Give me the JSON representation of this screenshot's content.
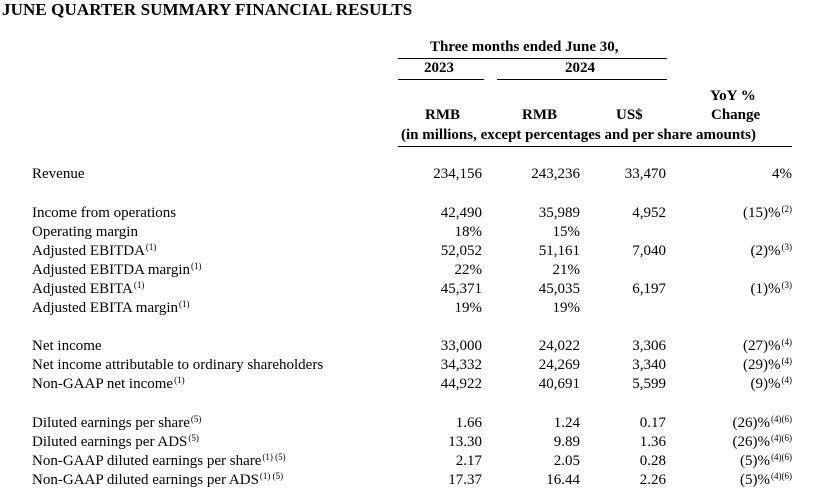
{
  "title": "JUNE QUARTER SUMMARY FINANCIAL RESULTS",
  "header": {
    "period": "Three months ended June 30,",
    "year_2023": "2023",
    "year_2024": "2024",
    "yoy_line1": "YoY %",
    "yoy_line2": "Change",
    "cur_rmb_2023": "RMB",
    "cur_rmb_2024": "RMB",
    "cur_usd": "US$",
    "units_note": "(in millions, except percentages and per share amounts)"
  },
  "rows": [
    {
      "label": "Revenue",
      "label_note": "",
      "rmb_2023": "234,156",
      "rmb_2024": "243,236",
      "usd_2024": "33,470",
      "yoy": "4%",
      "yoy_note": ""
    },
    {
      "label": "Income from operations",
      "label_note": "",
      "rmb_2023": "42,490",
      "rmb_2024": "35,989",
      "usd_2024": "4,952",
      "yoy": "(15)%",
      "yoy_note": "(2)"
    },
    {
      "label": "Operating margin",
      "label_note": "",
      "rmb_2023": "18%",
      "rmb_2024": "15%",
      "usd_2024": "",
      "yoy": "",
      "yoy_note": ""
    },
    {
      "label": "Adjusted EBITDA",
      "label_note": "(1)",
      "rmb_2023": "52,052",
      "rmb_2024": "51,161",
      "usd_2024": "7,040",
      "yoy": "(2)%",
      "yoy_note": "(3)"
    },
    {
      "label": "Adjusted EBITDA margin",
      "label_note": "(1)",
      "rmb_2023": "22%",
      "rmb_2024": "21%",
      "usd_2024": "",
      "yoy": "",
      "yoy_note": ""
    },
    {
      "label": "Adjusted EBITA",
      "label_note": "(1)",
      "rmb_2023": "45,371",
      "rmb_2024": "45,035",
      "usd_2024": "6,197",
      "yoy": "(1)%",
      "yoy_note": "(3)"
    },
    {
      "label": "Adjusted EBITA margin",
      "label_note": "(1)",
      "rmb_2023": "19%",
      "rmb_2024": "19%",
      "usd_2024": "",
      "yoy": "",
      "yoy_note": ""
    },
    {
      "label": "Net income",
      "label_note": "",
      "rmb_2023": "33,000",
      "rmb_2024": "24,022",
      "usd_2024": "3,306",
      "yoy": "(27)%",
      "yoy_note": "(4)"
    },
    {
      "label": "Net income attributable to ordinary shareholders",
      "label_note": "",
      "rmb_2023": "34,332",
      "rmb_2024": "24,269",
      "usd_2024": "3,340",
      "yoy": "(29)%",
      "yoy_note": "(4)"
    },
    {
      "label": "Non-GAAP net income",
      "label_note": "(1)",
      "rmb_2023": "44,922",
      "rmb_2024": "40,691",
      "usd_2024": "5,599",
      "yoy": "(9)%",
      "yoy_note": "(4)"
    },
    {
      "label": "Diluted earnings per share",
      "label_note": "(5)",
      "rmb_2023": "1.66",
      "rmb_2024": "1.24",
      "usd_2024": "0.17",
      "yoy": "(26)%",
      "yoy_note": "(4)(6)"
    },
    {
      "label": "Diluted earnings per ADS",
      "label_note": "(5)",
      "rmb_2023": "13.30",
      "rmb_2024": "9.89",
      "usd_2024": "1.36",
      "yoy": "(26)%",
      "yoy_note": "(4)(6)"
    },
    {
      "label": "Non-GAAP diluted earnings per share",
      "label_note": "(1) (5)",
      "rmb_2023": "2.17",
      "rmb_2024": "2.05",
      "usd_2024": "0.28",
      "yoy": "(5)%",
      "yoy_note": "(4)(6)"
    },
    {
      "label": "Non-GAAP diluted earnings per ADS",
      "label_note": "(1) (5)",
      "rmb_2023": "17.37",
      "rmb_2024": "16.44",
      "usd_2024": "2.26",
      "yoy": "(5)%",
      "yoy_note": "(4)(6)"
    }
  ]
}
